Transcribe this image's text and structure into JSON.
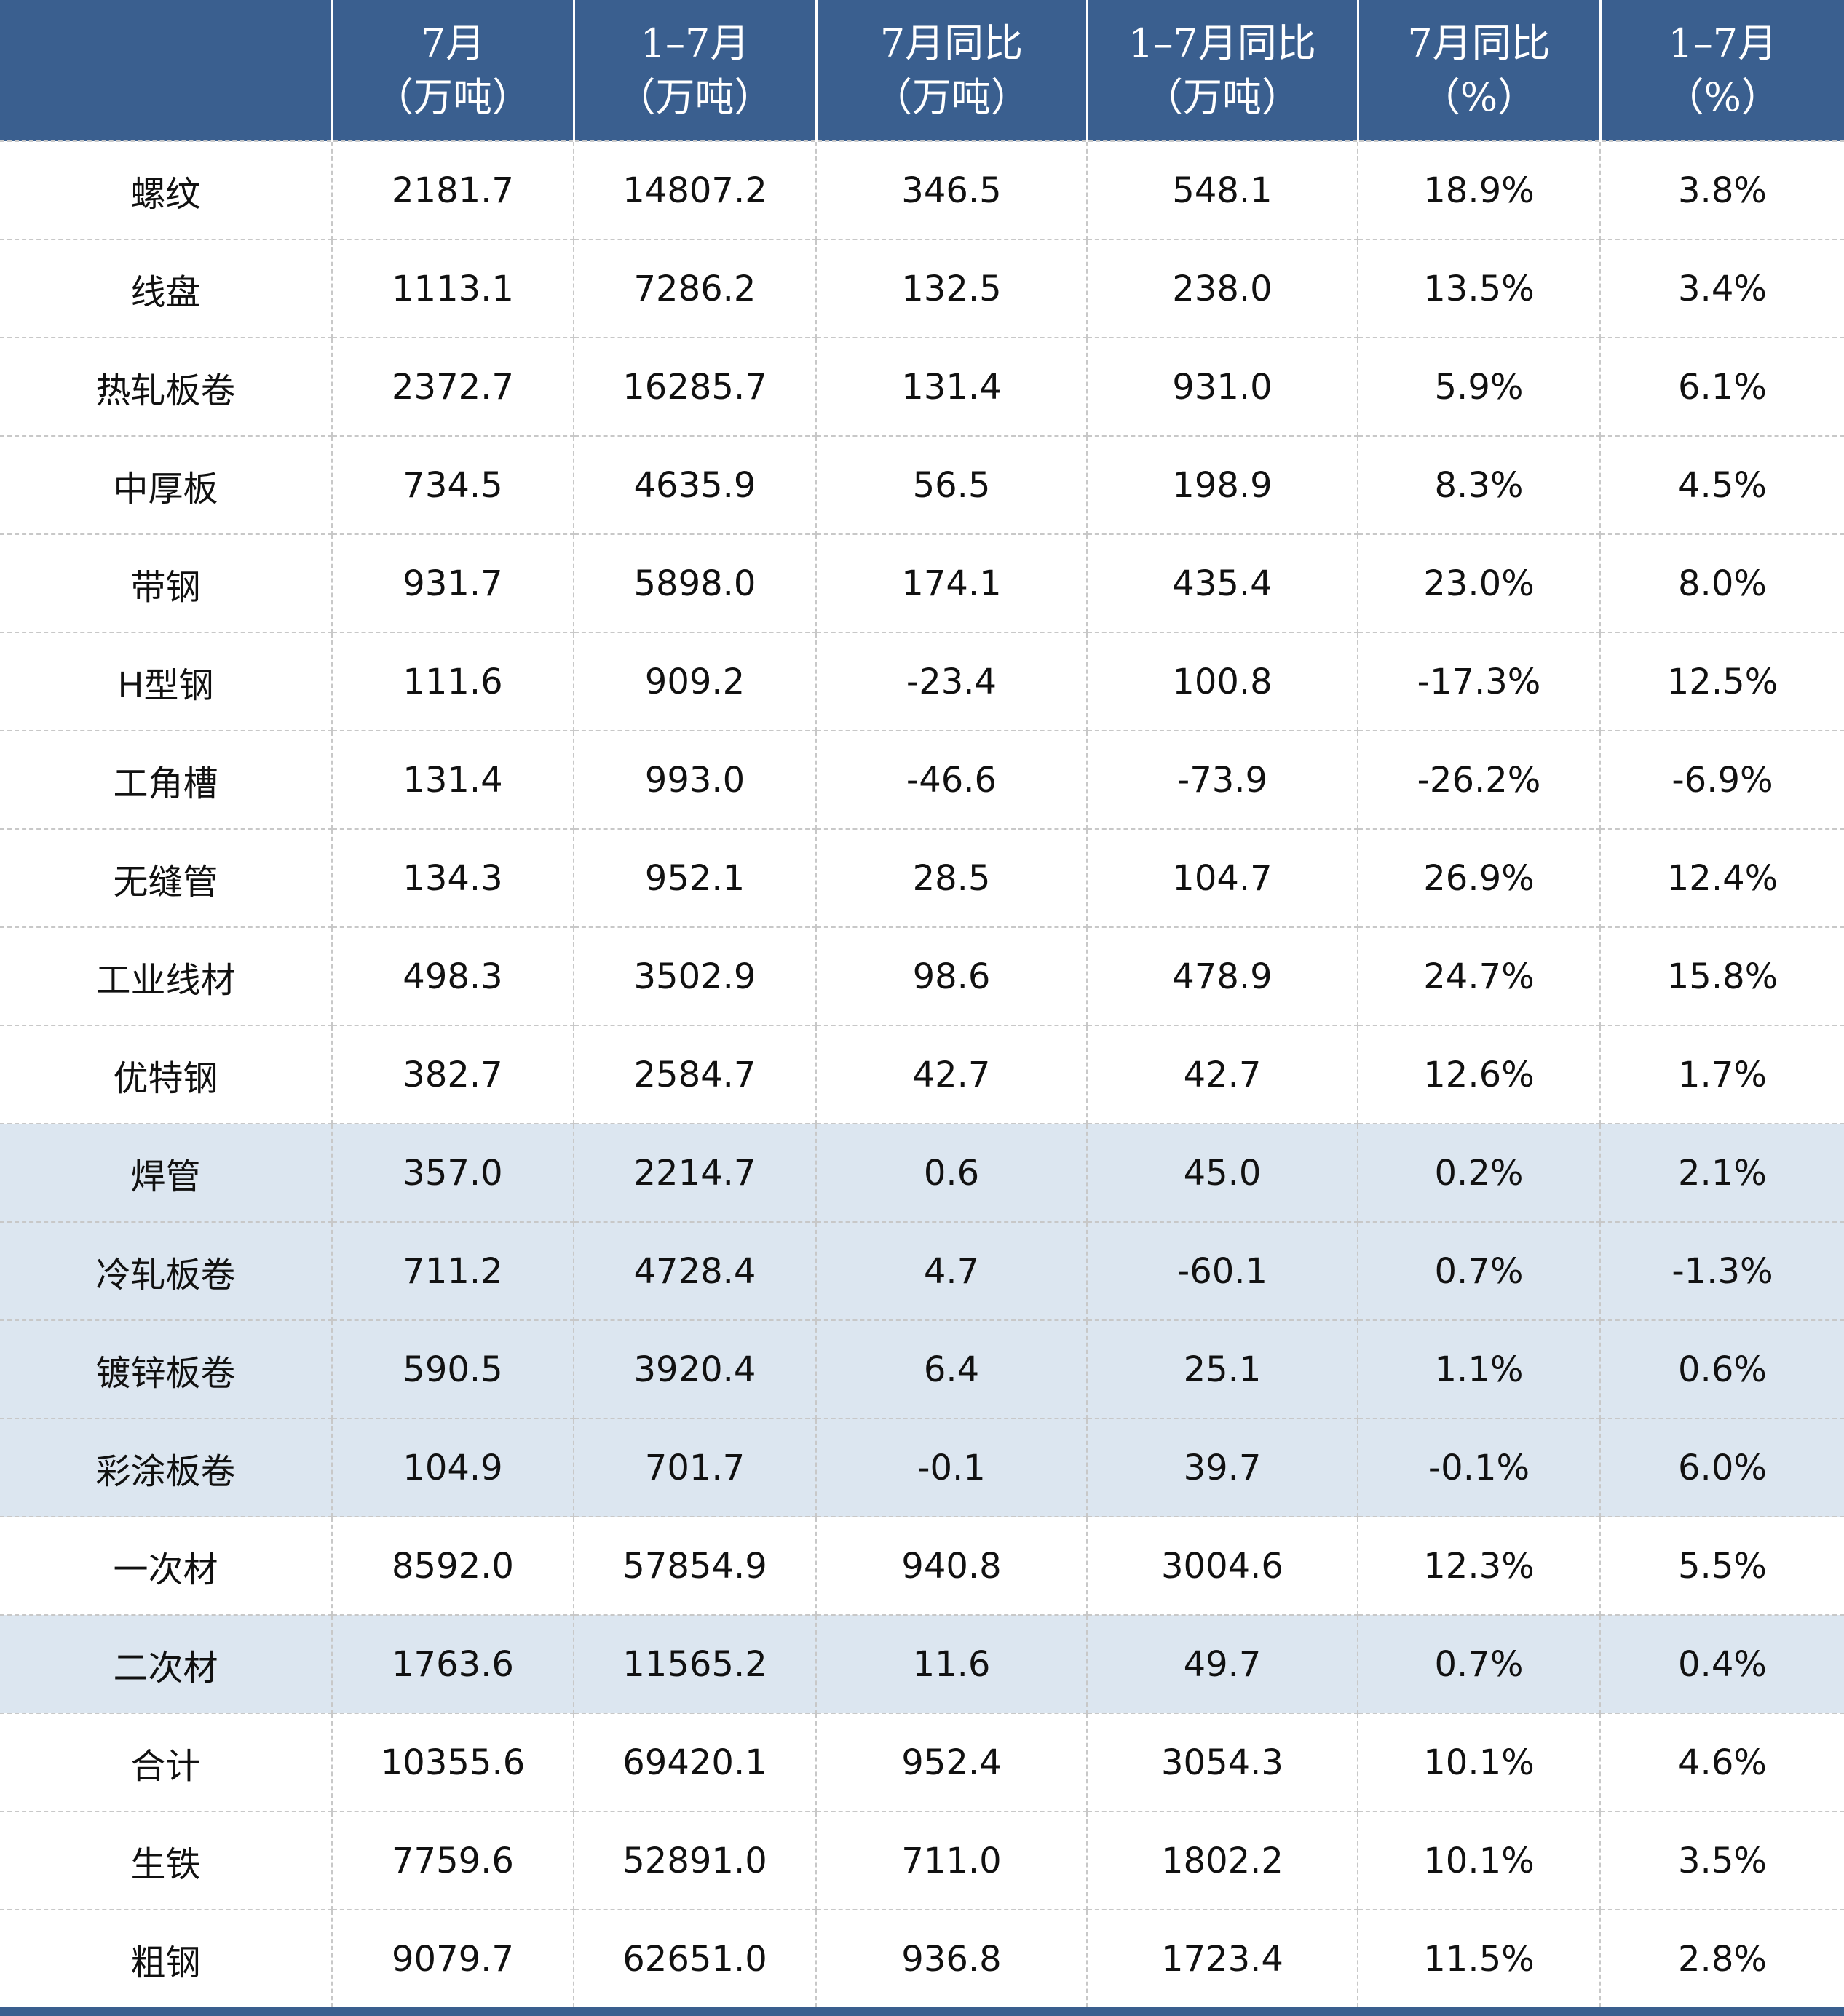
{
  "table": {
    "header": [
      [
        "7月",
        "（万吨）"
      ],
      [
        "1–7月",
        "（万吨）"
      ],
      [
        "7月同比",
        "（万吨）"
      ],
      [
        "1–7月同比",
        "（万吨）"
      ],
      [
        "7月同比",
        "（%）"
      ],
      [
        "1–7月",
        "（%）"
      ]
    ],
    "rows": [
      {
        "cells": [
          "螺纹",
          "2181.7",
          "14807.2",
          "346.5",
          "548.1",
          "18.9%",
          "3.8%"
        ]
      },
      {
        "cells": [
          "线盘",
          "1113.1",
          "7286.2",
          "132.5",
          "238.0",
          "13.5%",
          "3.4%"
        ]
      },
      {
        "cells": [
          "热轧板卷",
          "2372.7",
          "16285.7",
          "131.4",
          "931.0",
          "5.9%",
          "6.1%"
        ]
      },
      {
        "cells": [
          "中厚板",
          "734.5",
          "4635.9",
          "56.5",
          "198.9",
          "8.3%",
          "4.5%"
        ]
      },
      {
        "cells": [
          "带钢",
          "931.7",
          "5898.0",
          "174.1",
          "435.4",
          "23.0%",
          "8.0%"
        ]
      },
      {
        "cells": [
          "H型钢",
          "111.6",
          "909.2",
          "-23.4",
          "100.8",
          "-17.3%",
          "12.5%"
        ]
      },
      {
        "cells": [
          "工角槽",
          "131.4",
          "993.0",
          "-46.6",
          "-73.9",
          "-26.2%",
          "-6.9%"
        ]
      },
      {
        "cells": [
          "无缝管",
          "134.3",
          "952.1",
          "28.5",
          "104.7",
          "26.9%",
          "12.4%"
        ]
      },
      {
        "cells": [
          "工业线材",
          "498.3",
          "3502.9",
          "98.6",
          "478.9",
          "24.7%",
          "15.8%"
        ]
      },
      {
        "cells": [
          "优特钢",
          "382.7",
          "2584.7",
          "42.7",
          "42.7",
          "12.6%",
          "1.7%"
        ]
      },
      {
        "cells": [
          "焊管",
          "357.0",
          "2214.7",
          "0.6",
          "45.0",
          "0.2%",
          "2.1%"
        ],
        "fill": "#dce6f0"
      },
      {
        "cells": [
          "冷轧板卷",
          "711.2",
          "4728.4",
          "4.7",
          "-60.1",
          "0.7%",
          "-1.3%"
        ],
        "fill": "#dce6f0"
      },
      {
        "cells": [
          "镀锌板卷",
          "590.5",
          "3920.4",
          "6.4",
          "25.1",
          "1.1%",
          "0.6%"
        ],
        "fill": "#dce6f0"
      },
      {
        "cells": [
          "彩涂板卷",
          "104.9",
          "701.7",
          "-0.1",
          "39.7",
          "-0.1%",
          "6.0%"
        ],
        "fill": "#dce6f0"
      },
      {
        "cells": [
          "一次材",
          "8592.0",
          "57854.9",
          "940.8",
          "3004.6",
          "12.3%",
          "5.5%"
        ]
      },
      {
        "cells": [
          "二次材",
          "1763.6",
          "11565.2",
          "11.6",
          "49.7",
          "0.7%",
          "0.4%"
        ],
        "fill": "#dce6f0"
      },
      {
        "cells": [
          "合计",
          "10355.6",
          "69420.1",
          "952.4",
          "3054.3",
          "10.1%",
          "4.6%"
        ]
      },
      {
        "cells": [
          "生铁",
          "7759.6",
          "52891.0",
          "711.0",
          "1802.2",
          "10.1%",
          "3.5%"
        ]
      },
      {
        "cells": [
          "粗钢",
          "9079.7",
          "62651.0",
          "936.8",
          "1723.4",
          "11.5%",
          "2.8%"
        ]
      }
    ]
  }
}
